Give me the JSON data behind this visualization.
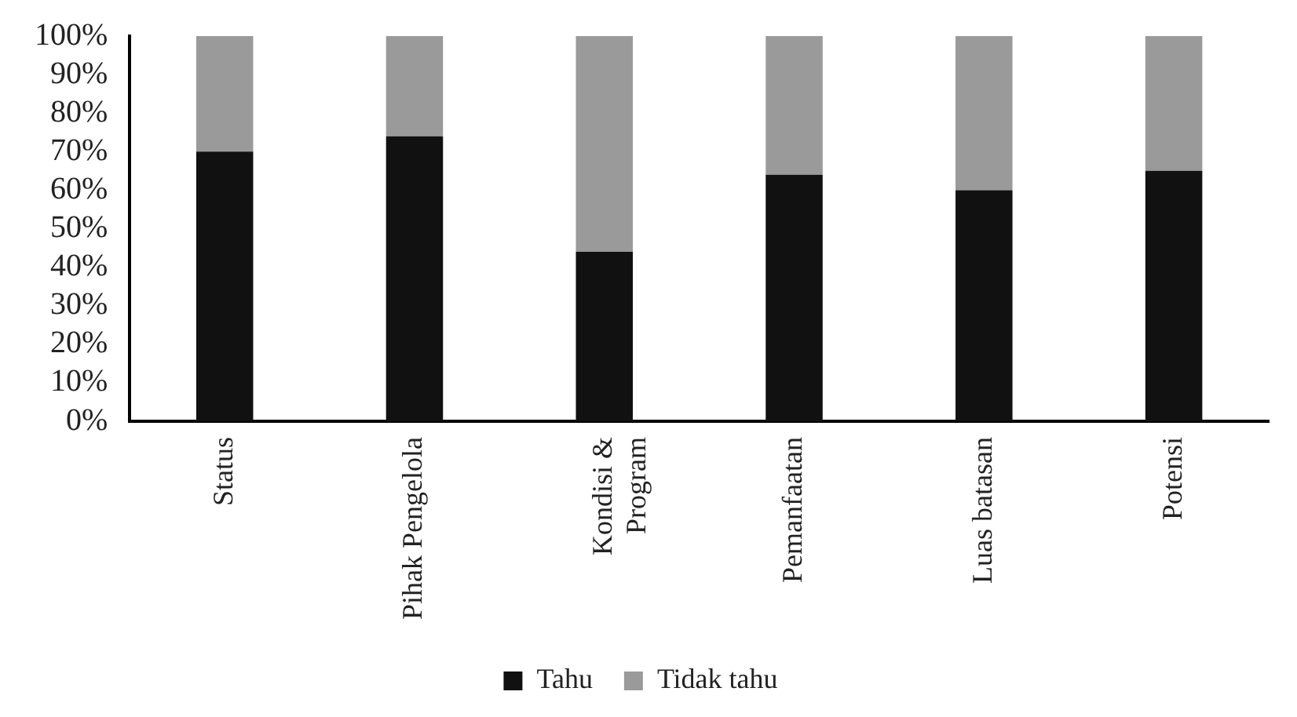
{
  "chart_data": {
    "type": "bar",
    "stacked": true,
    "categories": [
      "Status",
      "Pihak Pengelola",
      "Kondisi &\nProgram",
      "Pemanfaatan",
      "Luas batasan",
      "Potensi"
    ],
    "series": [
      {
        "name": "Tahu",
        "color": "#111111",
        "values": [
          70,
          74,
          44,
          64,
          60,
          65
        ]
      },
      {
        "name": "Tidak tahu",
        "color": "#9a9a9a",
        "values": [
          30,
          26,
          56,
          36,
          40,
          35
        ]
      }
    ],
    "ylim": [
      0,
      100
    ],
    "yticks": [
      {
        "value": 0,
        "label": "0%"
      },
      {
        "value": 10,
        "label": "10%"
      },
      {
        "value": 20,
        "label": "20%"
      },
      {
        "value": 30,
        "label": "30%"
      },
      {
        "value": 40,
        "label": "40%"
      },
      {
        "value": 50,
        "label": "50%"
      },
      {
        "value": 60,
        "label": "60%"
      },
      {
        "value": 70,
        "label": "70%"
      },
      {
        "value": 80,
        "label": "80%"
      },
      {
        "value": 90,
        "label": "90%"
      },
      {
        "value": 100,
        "label": "100%"
      }
    ],
    "grid": false,
    "legend": "bottom"
  }
}
